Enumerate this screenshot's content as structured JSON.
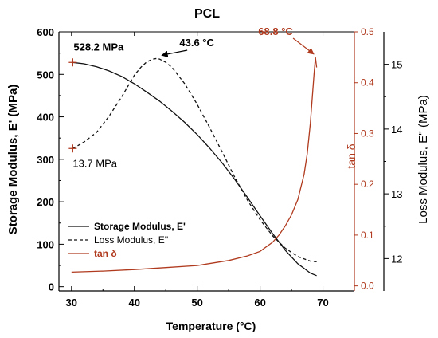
{
  "chart_data": {
    "type": "line",
    "title": "PCL",
    "xlabel": "Temperature (°C)",
    "ylabel_left": "Storage Modulus, E' (MPa)",
    "ylabel_tan": "tan δ",
    "ylabel_right": "Loss Modulus, E'' (MPa)",
    "xlim": [
      28,
      75
    ],
    "ylim_left": [
      -10,
      600
    ],
    "ylim_tan": [
      -0.01,
      0.5
    ],
    "ylim_right": [
      11.5,
      15.5
    ],
    "x_ticks": [
      "30",
      "40",
      "50",
      "60",
      "70"
    ],
    "y_left_ticks": [
      "0",
      "100",
      "200",
      "300",
      "400",
      "500",
      "600"
    ],
    "y_tan_ticks": [
      "0.0",
      "0.1",
      "0.2",
      "0.3",
      "0.4",
      "0.5"
    ],
    "y_right_ticks": [
      "12",
      "13",
      "14",
      "15"
    ],
    "colors": {
      "storage": "#111111",
      "loss": "#111111",
      "tan": "#b03a1e",
      "axis": "#000000"
    },
    "legend_position": "lower-left",
    "series": [
      {
        "name": "Storage Modulus, E'",
        "axis": "left",
        "style": "solid",
        "x": [
          30.2,
          32,
          34,
          36,
          38,
          40,
          42,
          44,
          46,
          48,
          50,
          52,
          54,
          56,
          58,
          60,
          62,
          64,
          66,
          68,
          69
        ],
        "y": [
          528.2,
          525,
          518,
          508,
          495,
          478,
          458,
          437,
          413,
          387,
          358,
          326,
          291,
          252,
          210,
          167,
          125,
          86,
          54,
          32,
          26
        ]
      },
      {
        "name": "Loss Modulus, E''",
        "axis": "right",
        "style": "dashed",
        "x": [
          30.2,
          32,
          34,
          36,
          38,
          40,
          41,
          42,
          43,
          43.6,
          44,
          45,
          46,
          48,
          50,
          52,
          54,
          56,
          58,
          60,
          62,
          64,
          66,
          68,
          69
        ],
        "y": [
          13.7,
          13.8,
          13.95,
          14.2,
          14.5,
          14.83,
          14.95,
          15.04,
          15.08,
          15.09,
          15.08,
          15.03,
          14.95,
          14.7,
          14.38,
          14.02,
          13.64,
          13.25,
          12.9,
          12.6,
          12.35,
          12.16,
          12.03,
          11.96,
          11.95
        ]
      },
      {
        "name": "tan δ",
        "axis": "tan",
        "style": "solid",
        "x": [
          30,
          35,
          40,
          45,
          50,
          55,
          58,
          60,
          62,
          63,
          64,
          65,
          66,
          67,
          67.5,
          68,
          68.3,
          68.6,
          68.8,
          69
        ],
        "y": [
          0.027,
          0.029,
          0.032,
          0.036,
          0.04,
          0.05,
          0.059,
          0.068,
          0.086,
          0.1,
          0.118,
          0.14,
          0.17,
          0.22,
          0.26,
          0.32,
          0.37,
          0.42,
          0.45,
          0.43
        ]
      }
    ],
    "annotations": [
      {
        "text": "528.2 MPa",
        "x": 30.2,
        "y": 528.2,
        "axis": "left"
      },
      {
        "text": "13.7 MPa",
        "x": 30.2,
        "y": 13.7,
        "axis": "right"
      },
      {
        "text": "43.6 °C",
        "x": 43.6,
        "y": 15.09,
        "axis": "right"
      },
      {
        "text": "68.8 °C",
        "x": 68.8,
        "y": 0.45,
        "axis": "tan"
      }
    ]
  }
}
